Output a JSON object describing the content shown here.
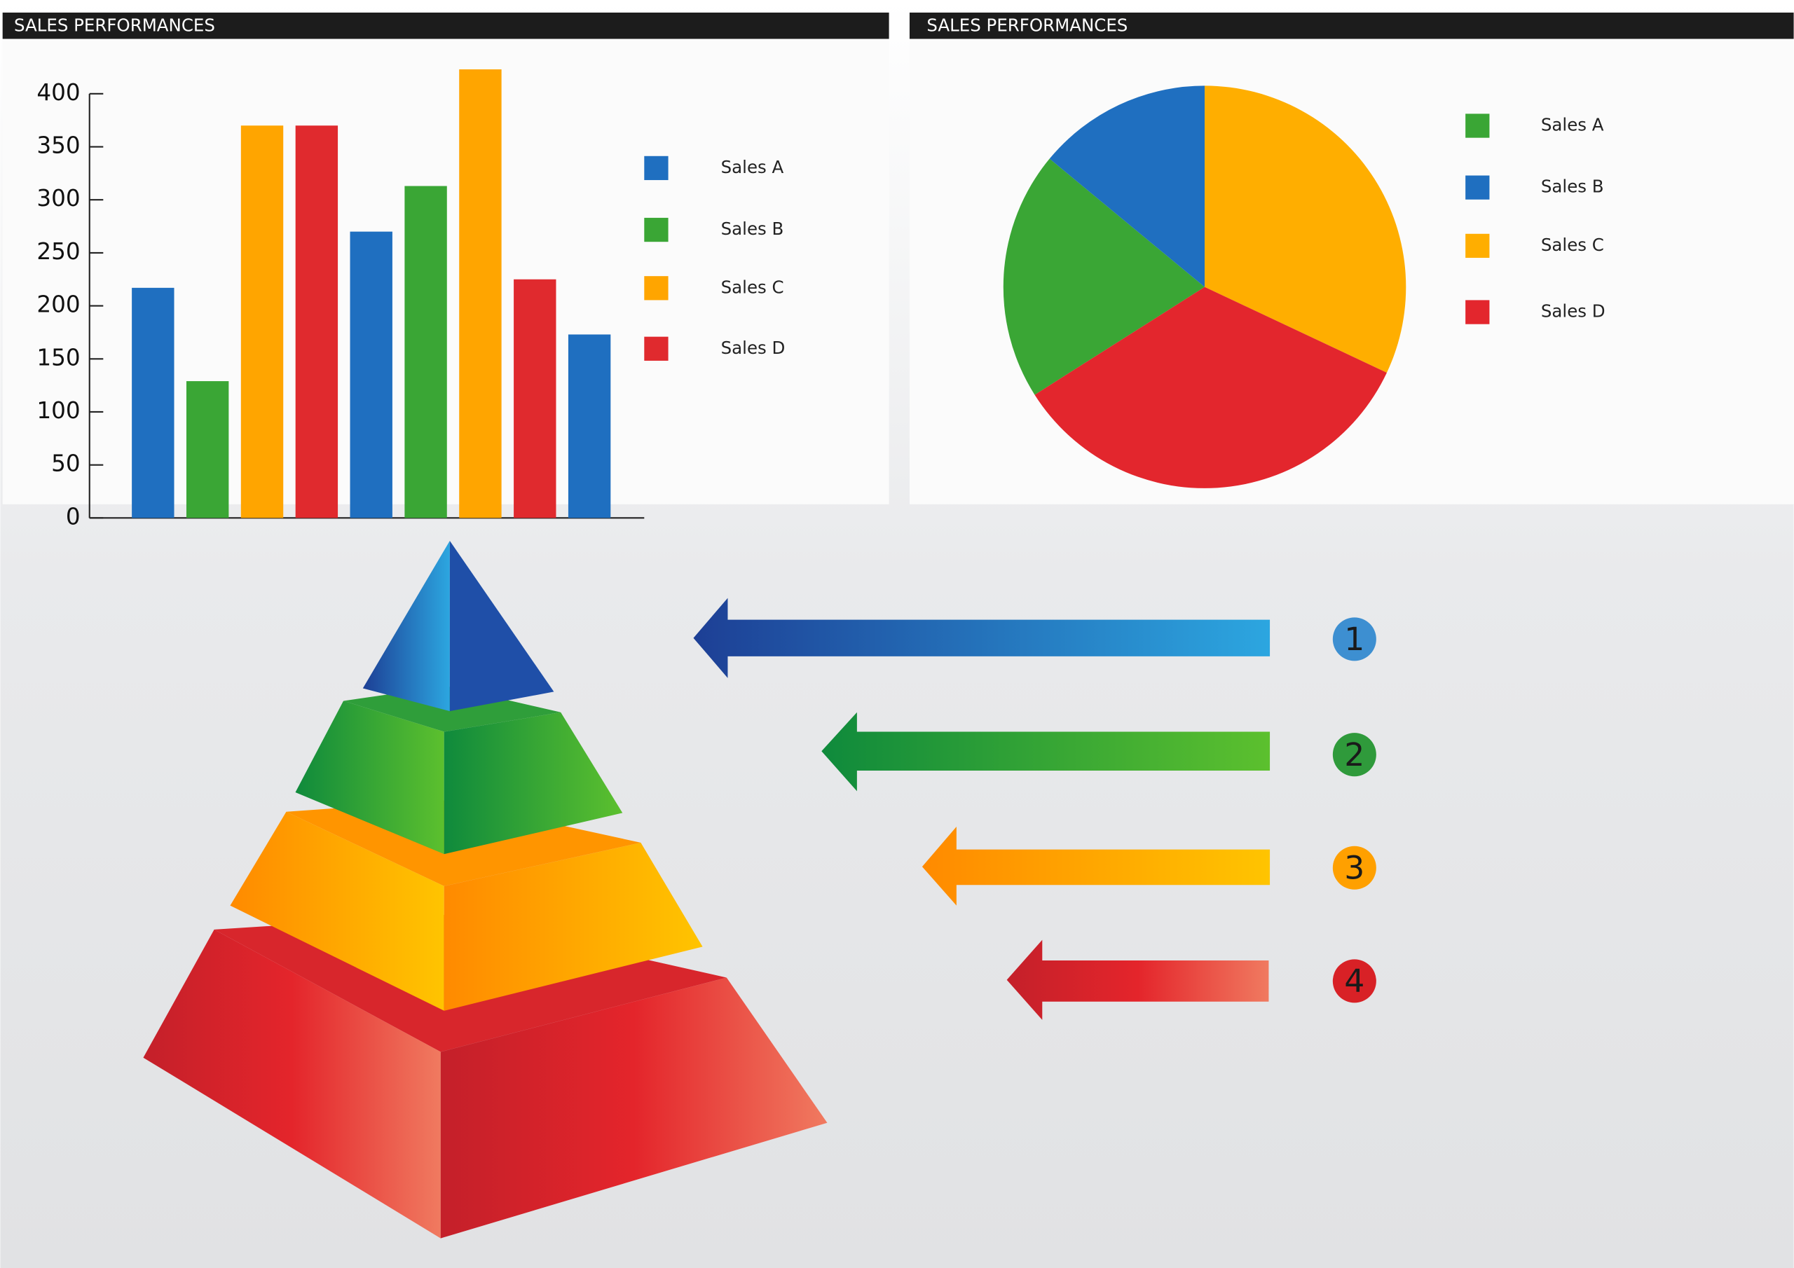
{
  "chart_data": [
    {
      "type": "bar",
      "title": "SALES PERFORMANCES",
      "categories": [
        null,
        null,
        null
      ],
      "series": [
        {
          "name": "Sales A",
          "color": "#1f6fc0",
          "values": [
            217,
            270,
            173
          ]
        },
        {
          "name": "Sales B",
          "color": "#3aa635",
          "values": [
            129,
            313,
            null
          ]
        },
        {
          "name": "Sales C",
          "color": "#ffa500",
          "values": [
            370,
            423,
            null
          ]
        },
        {
          "name": "Sales D",
          "color": "#e02a2e",
          "values": [
            370,
            225,
            null
          ]
        }
      ],
      "ylim": [
        0,
        400
      ],
      "yticks": [
        0,
        50,
        100,
        150,
        200,
        250,
        300,
        350,
        400
      ]
    },
    {
      "type": "pie",
      "title": "SALES PERFORMANCES",
      "categories": [
        "Sales A",
        "Sales B",
        "Sales C",
        "Sales D"
      ],
      "values": [
        20,
        14,
        32,
        34
      ],
      "colors": [
        "#3aa635",
        "#1f6fc0",
        "#ffae00",
        "#e3262d"
      ]
    }
  ],
  "diagram": {
    "steps": [
      "1",
      "2",
      "3",
      "4"
    ]
  }
}
